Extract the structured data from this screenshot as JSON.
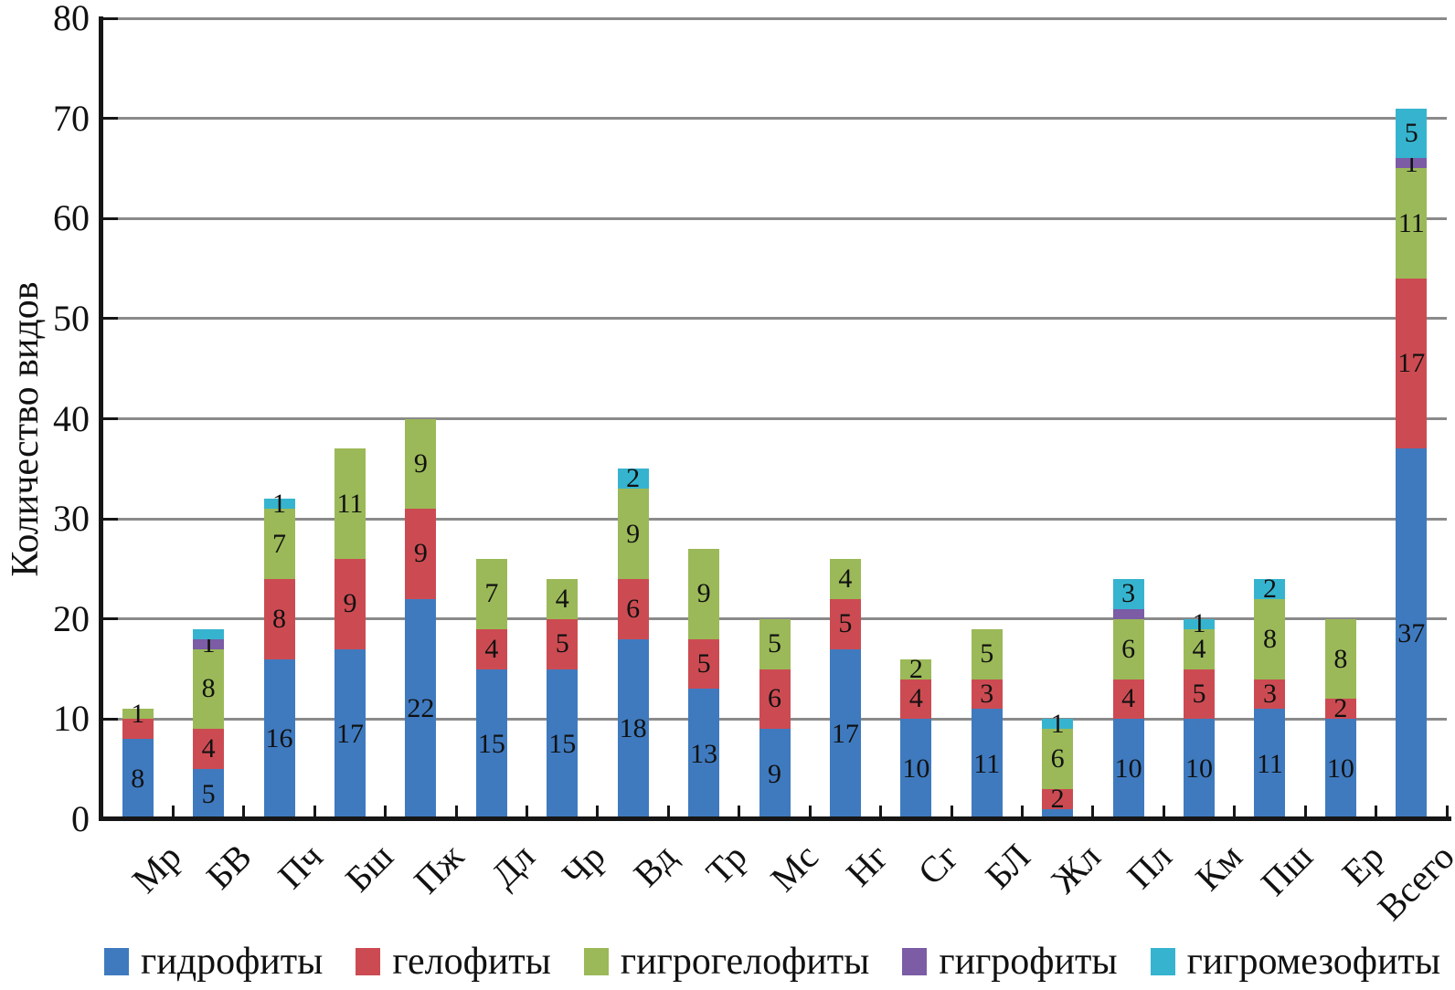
{
  "chart_data": {
    "type": "bar",
    "stacked": true,
    "title": "",
    "xlabel": "",
    "ylabel": "Количество видов",
    "ylim": [
      0,
      80
    ],
    "yticks": [
      0,
      10,
      20,
      30,
      40,
      50,
      60,
      70,
      80
    ],
    "grid": "horizontal",
    "legend_position": "bottom",
    "categories": [
      "Мр",
      "БВ",
      "Пч",
      "Бш",
      "Пж",
      "Дл",
      "Чр",
      "Вд",
      "Тр",
      "Мс",
      "Нг",
      "Сг",
      "БЛ",
      "Жл",
      "Пл",
      "Км",
      "Пш",
      "Ер",
      "Всего"
    ],
    "series": [
      {
        "name": "гидрофиты",
        "color": "#3F7ABF",
        "values": [
          8,
          5,
          16,
          17,
          22,
          15,
          15,
          18,
          13,
          9,
          17,
          10,
          11,
          1,
          10,
          10,
          11,
          10,
          37
        ]
      },
      {
        "name": "гелофиты",
        "color": "#CC4B52",
        "values": [
          2,
          4,
          8,
          9,
          9,
          4,
          5,
          6,
          5,
          6,
          5,
          4,
          3,
          2,
          4,
          5,
          3,
          2,
          17
        ]
      },
      {
        "name": "гигрогелофиты",
        "color": "#9BB958",
        "values": [
          1,
          8,
          7,
          11,
          9,
          7,
          4,
          9,
          9,
          5,
          4,
          2,
          5,
          6,
          6,
          4,
          8,
          8,
          11
        ]
      },
      {
        "name": "гигрофиты",
        "color": "#7B5CA5",
        "values": [
          0,
          1,
          0,
          0,
          0,
          0,
          0,
          0,
          0,
          0,
          0,
          0,
          0,
          0,
          1,
          0,
          0,
          0,
          1
        ]
      },
      {
        "name": "гигромезофиты",
        "color": "#36B4CF",
        "values": [
          0,
          1,
          1,
          0,
          0,
          0,
          0,
          2,
          0,
          0,
          0,
          0,
          0,
          1,
          3,
          1,
          2,
          0,
          5
        ]
      }
    ],
    "totals": [
      11,
      19,
      32,
      37,
      40,
      26,
      24,
      35,
      27,
      20,
      26,
      16,
      19,
      10,
      24,
      20,
      24,
      20,
      71
    ],
    "hidden_value_labels": [
      {
        "category": "Мр",
        "series": "гелофиты"
      },
      {
        "category": "БВ",
        "series": "гигромезофиты"
      },
      {
        "category": "Жл",
        "series": "гидрофиты"
      },
      {
        "category": "Пл",
        "series": "гигрофиты"
      }
    ],
    "colors": {
      "gridline": "#8A8A8A",
      "axis": "#161616",
      "value_label": "#111111"
    }
  }
}
